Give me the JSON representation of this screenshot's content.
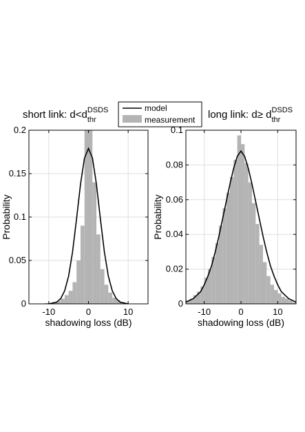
{
  "legend": {
    "placement": "top-center",
    "entries": [
      {
        "label": "model",
        "style": "line"
      },
      {
        "label": "measurement",
        "style": "patch"
      }
    ]
  },
  "colors": {
    "bar_fill": "#b4b4b4",
    "model_line": "#000000",
    "grid": "#dedede",
    "axis": "#000000"
  },
  "chart_data": [
    {
      "type": "bar",
      "title": "short link: d<d",
      "title_sup": "DSDS",
      "title_sub": "thr",
      "xlabel": "shadowing loss (dB)",
      "ylabel": "Probability",
      "xlim": [
        -15,
        15
      ],
      "ylim": [
        0,
        0.2
      ],
      "xticks": [
        -10,
        0,
        10
      ],
      "xtick_labels": [
        "-10",
        "0",
        "10"
      ],
      "yticks": [
        0,
        0.05,
        0.1,
        0.15,
        0.2
      ],
      "ytick_labels": [
        "0",
        "0.05",
        "0.1",
        "0.15",
        "0.2"
      ],
      "grid": true,
      "bin_width": 1,
      "bins": {
        "x": [
          -10.5,
          -9.5,
          -8.5,
          -7.5,
          -6.5,
          -5.5,
          -4.5,
          -3.5,
          -2.5,
          -1.5,
          -0.5,
          0.5,
          1.5,
          2.5,
          3.5,
          4.5,
          5.5,
          6.5,
          7.5,
          8.5,
          9.5
        ],
        "values": [
          0.001,
          0.001,
          0.002,
          0.003,
          0.006,
          0.01,
          0.015,
          0.025,
          0.05,
          0.09,
          0.2,
          0.2,
          0.14,
          0.08,
          0.04,
          0.022,
          0.013,
          0.007,
          0.004,
          0.002,
          0.001
        ]
      },
      "model": {
        "x": [
          -10,
          -9,
          -8,
          -7,
          -6,
          -5,
          -4,
          -3,
          -2,
          -1,
          0,
          1,
          2,
          3,
          4,
          5,
          6,
          7,
          8,
          9,
          10
        ],
        "values": [
          0.0,
          0.001,
          0.002,
          0.006,
          0.015,
          0.032,
          0.06,
          0.098,
          0.138,
          0.168,
          0.179,
          0.168,
          0.138,
          0.098,
          0.06,
          0.032,
          0.015,
          0.006,
          0.002,
          0.001,
          0.0
        ]
      }
    },
    {
      "type": "bar",
      "title": "long link: d≥ d",
      "title_sup": "DSDS",
      "title_sub": "thr",
      "xlabel": "shadowing loss (dB)",
      "ylabel": "Probability",
      "xlim": [
        -15,
        15
      ],
      "ylim": [
        0,
        0.1
      ],
      "xticks": [
        -10,
        0,
        10
      ],
      "xtick_labels": [
        "-10",
        "0",
        "10"
      ],
      "yticks": [
        0,
        0.02,
        0.04,
        0.06,
        0.08,
        0.1
      ],
      "ytick_labels": [
        "0",
        "0.02",
        "0.04",
        "0.06",
        "0.08",
        "0.1"
      ],
      "grid": true,
      "bin_width": 1,
      "bins": {
        "x": [
          -14.5,
          -13.5,
          -12.5,
          -11.5,
          -10.5,
          -9.5,
          -8.5,
          -7.5,
          -6.5,
          -5.5,
          -4.5,
          -3.5,
          -2.5,
          -1.5,
          -0.5,
          0.5,
          1.5,
          2.5,
          3.5,
          4.5,
          5.5,
          6.5,
          7.5,
          8.5,
          9.5,
          10.5,
          11.5,
          12.5,
          13.5,
          14.5
        ],
        "values": [
          0.002,
          0.003,
          0.005,
          0.007,
          0.01,
          0.015,
          0.02,
          0.027,
          0.035,
          0.045,
          0.055,
          0.064,
          0.073,
          0.083,
          0.097,
          0.092,
          0.081,
          0.07,
          0.058,
          0.046,
          0.034,
          0.024,
          0.016,
          0.011,
          0.008,
          0.006,
          0.004,
          0.003,
          0.002,
          0.001
        ]
      },
      "model": {
        "x": [
          -15,
          -14,
          -13,
          -12,
          -11,
          -10,
          -9,
          -8,
          -7,
          -6,
          -5,
          -4,
          -3,
          -2,
          -1,
          0,
          1,
          2,
          3,
          4,
          5,
          6,
          7,
          8,
          9,
          10,
          11,
          12,
          13,
          14,
          15
        ],
        "values": [
          0.001,
          0.002,
          0.003,
          0.005,
          0.007,
          0.011,
          0.016,
          0.022,
          0.03,
          0.039,
          0.049,
          0.059,
          0.069,
          0.078,
          0.085,
          0.088,
          0.085,
          0.078,
          0.069,
          0.059,
          0.049,
          0.039,
          0.03,
          0.022,
          0.016,
          0.011,
          0.007,
          0.005,
          0.003,
          0.002,
          0.001
        ]
      }
    }
  ]
}
